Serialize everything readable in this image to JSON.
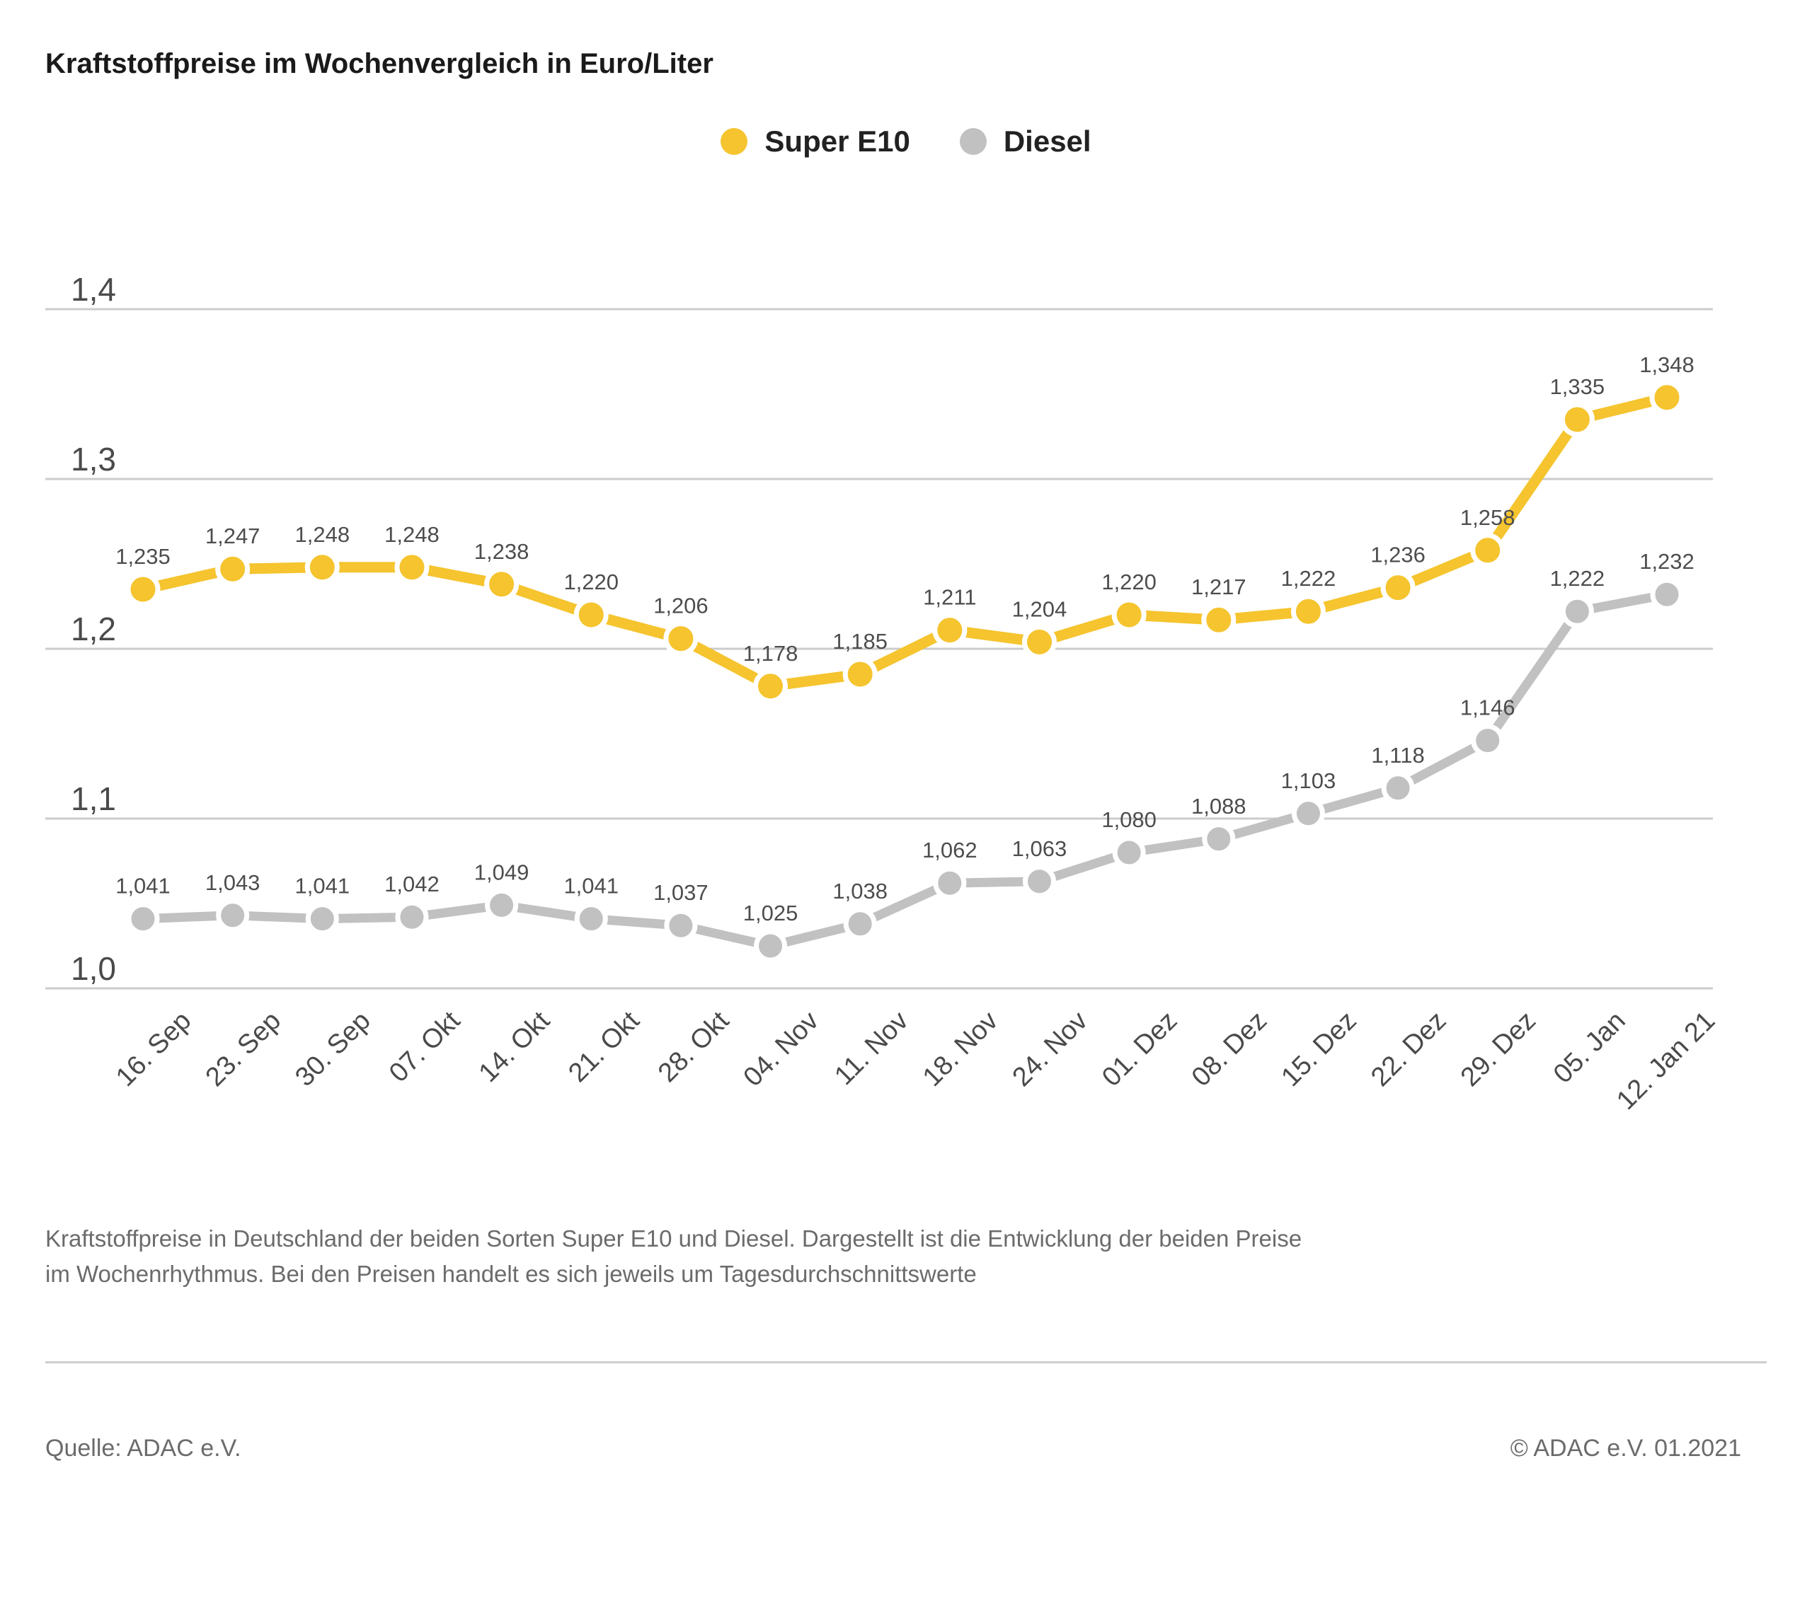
{
  "page": {
    "title": "Kraftstoffpreise im Wochenvergleich in Euro/Liter",
    "caption": "Kraftstoffpreise in Deutschland der beiden Sorten Super E10 und Diesel. Dargestellt ist die Entwicklung der beiden Preise im Wochenrhythmus. Bei den Preisen handelt es sich jeweils um Tagesdurchschnittswerte",
    "source": "Quelle: ADAC e.V.",
    "copyright": "© ADAC e.V. 01.2021"
  },
  "legend": [
    {
      "label": "Super E10",
      "color": "#F5C42E"
    },
    {
      "label": "Diesel",
      "color": "#C1C1C1"
    }
  ],
  "colors": {
    "super_e10": "#F5C42E",
    "diesel": "#C1C1C1",
    "grid": "#CCCCCC",
    "axis_text": "#4a4a4a",
    "label_text": "#4d4d4d",
    "title_text": "#1a1a1a",
    "caption_text": "#6b6b6b"
  },
  "chart_data": {
    "type": "line",
    "title": "Kraftstoffpreise im Wochenvergleich in Euro/Liter",
    "xlabel": "",
    "ylabel": "Euro/Liter",
    "categories": [
      "16. Sep",
      "23. Sep",
      "30. Sep",
      "07. Okt",
      "14. Okt",
      "21. Okt",
      "28. Okt",
      "04. Nov",
      "11. Nov",
      "18. Nov",
      "24. Nov",
      "01. Dez",
      "08. Dez",
      "15. Dez",
      "22. Dez",
      "29. Dez",
      "05. Jan",
      "12. Jan 21"
    ],
    "series": [
      {
        "name": "Super E10",
        "color": "#F5C42E",
        "values": [
          1.235,
          1.247,
          1.248,
          1.248,
          1.238,
          1.22,
          1.206,
          1.178,
          1.185,
          1.211,
          1.204,
          1.22,
          1.217,
          1.222,
          1.236,
          1.258,
          1.335,
          1.348
        ]
      },
      {
        "name": "Diesel",
        "color": "#C1C1C1",
        "values": [
          1.041,
          1.043,
          1.041,
          1.042,
          1.049,
          1.041,
          1.037,
          1.025,
          1.038,
          1.062,
          1.063,
          1.08,
          1.088,
          1.103,
          1.118,
          1.146,
          1.222,
          1.232
        ]
      }
    ],
    "ylim": [
      1.0,
      1.4
    ],
    "yticks": [
      1.0,
      1.1,
      1.2,
      1.3,
      1.4
    ],
    "grid": true,
    "legend_position": "top-center",
    "value_labels": true,
    "decimal_separator": ","
  }
}
